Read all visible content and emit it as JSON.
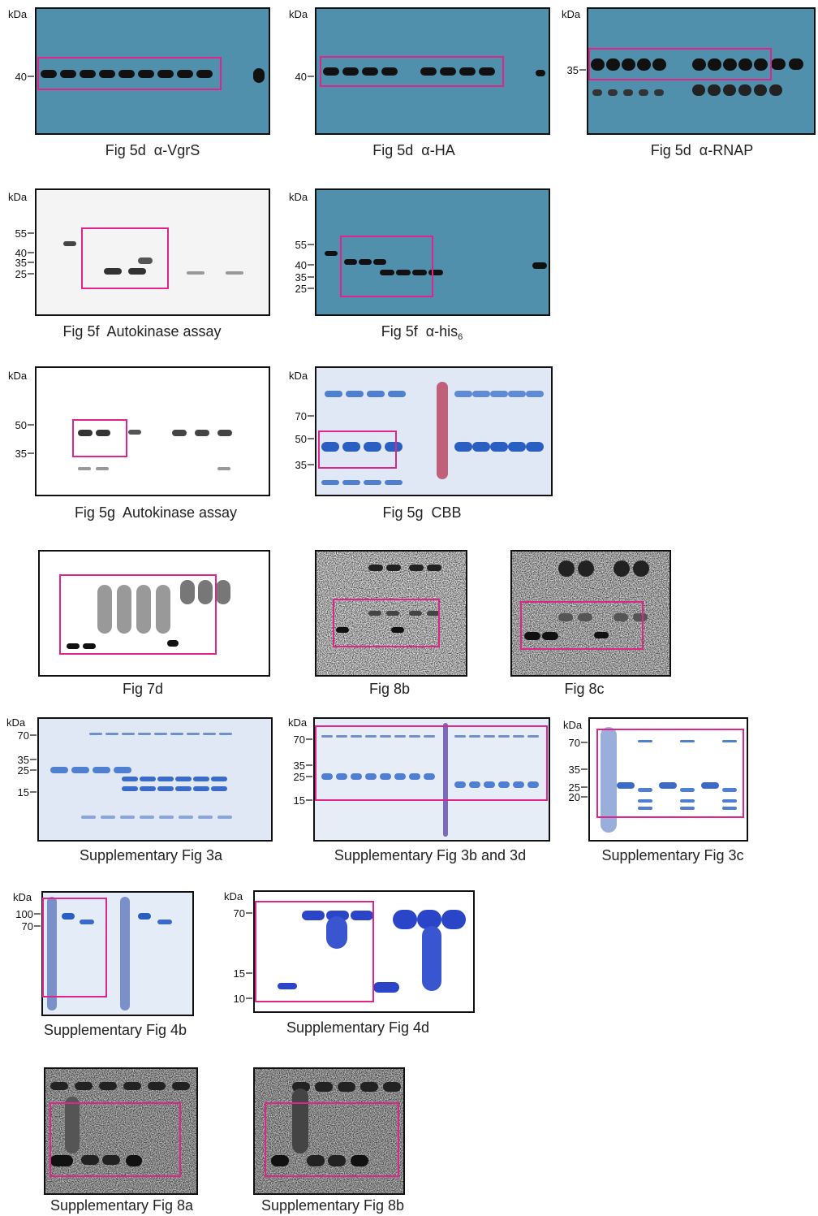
{
  "panels": [
    {
      "caption": "Fig 5d  α-VgrS",
      "unit": "kDa",
      "markers": [
        40
      ]
    },
    {
      "caption": "Fig 5d  α-HA",
      "unit": "kDa",
      "markers": [
        40
      ]
    },
    {
      "caption": "Fig 5d  α-RNAP",
      "unit": "kDa",
      "markers": [
        35
      ]
    },
    {
      "caption": "Fig 5f  Autokinase assay",
      "unit": "kDa",
      "markers": [
        55,
        40,
        35,
        25
      ]
    },
    {
      "caption": "Fig 5f  α-his",
      "caption_sub": "6",
      "unit": "kDa",
      "markers": [
        55,
        40,
        35,
        25
      ]
    },
    {
      "caption": "Fig 5g  Autokinase assay",
      "unit": "kDa",
      "markers": [
        50,
        35
      ]
    },
    {
      "caption": "Fig 5g  CBB",
      "unit": "kDa",
      "markers": [
        70,
        50,
        35
      ]
    },
    {
      "caption": "Fig 7d"
    },
    {
      "caption": "Fig 8b"
    },
    {
      "caption": "Fig 8c"
    },
    {
      "caption": "Supplementary Fig 3a",
      "unit": "kDa",
      "markers": [
        70,
        35,
        25,
        15
      ]
    },
    {
      "caption": "Supplementary Fig 3b and 3d",
      "unit": "kDa",
      "markers": [
        70,
        35,
        25,
        15
      ]
    },
    {
      "caption": "Supplementary Fig 3c",
      "unit": "kDa",
      "markers": [
        70,
        35,
        25,
        20
      ]
    },
    {
      "caption": "Supplementary Fig 4b",
      "unit": "kDa",
      "markers": [
        100,
        70
      ]
    },
    {
      "caption": "Supplementary Fig 4d",
      "unit": "kDa",
      "markers": [
        70,
        15,
        10
      ]
    },
    {
      "caption": "Supplementary Fig 8a"
    },
    {
      "caption": "Supplementary Fig 8b"
    }
  ]
}
